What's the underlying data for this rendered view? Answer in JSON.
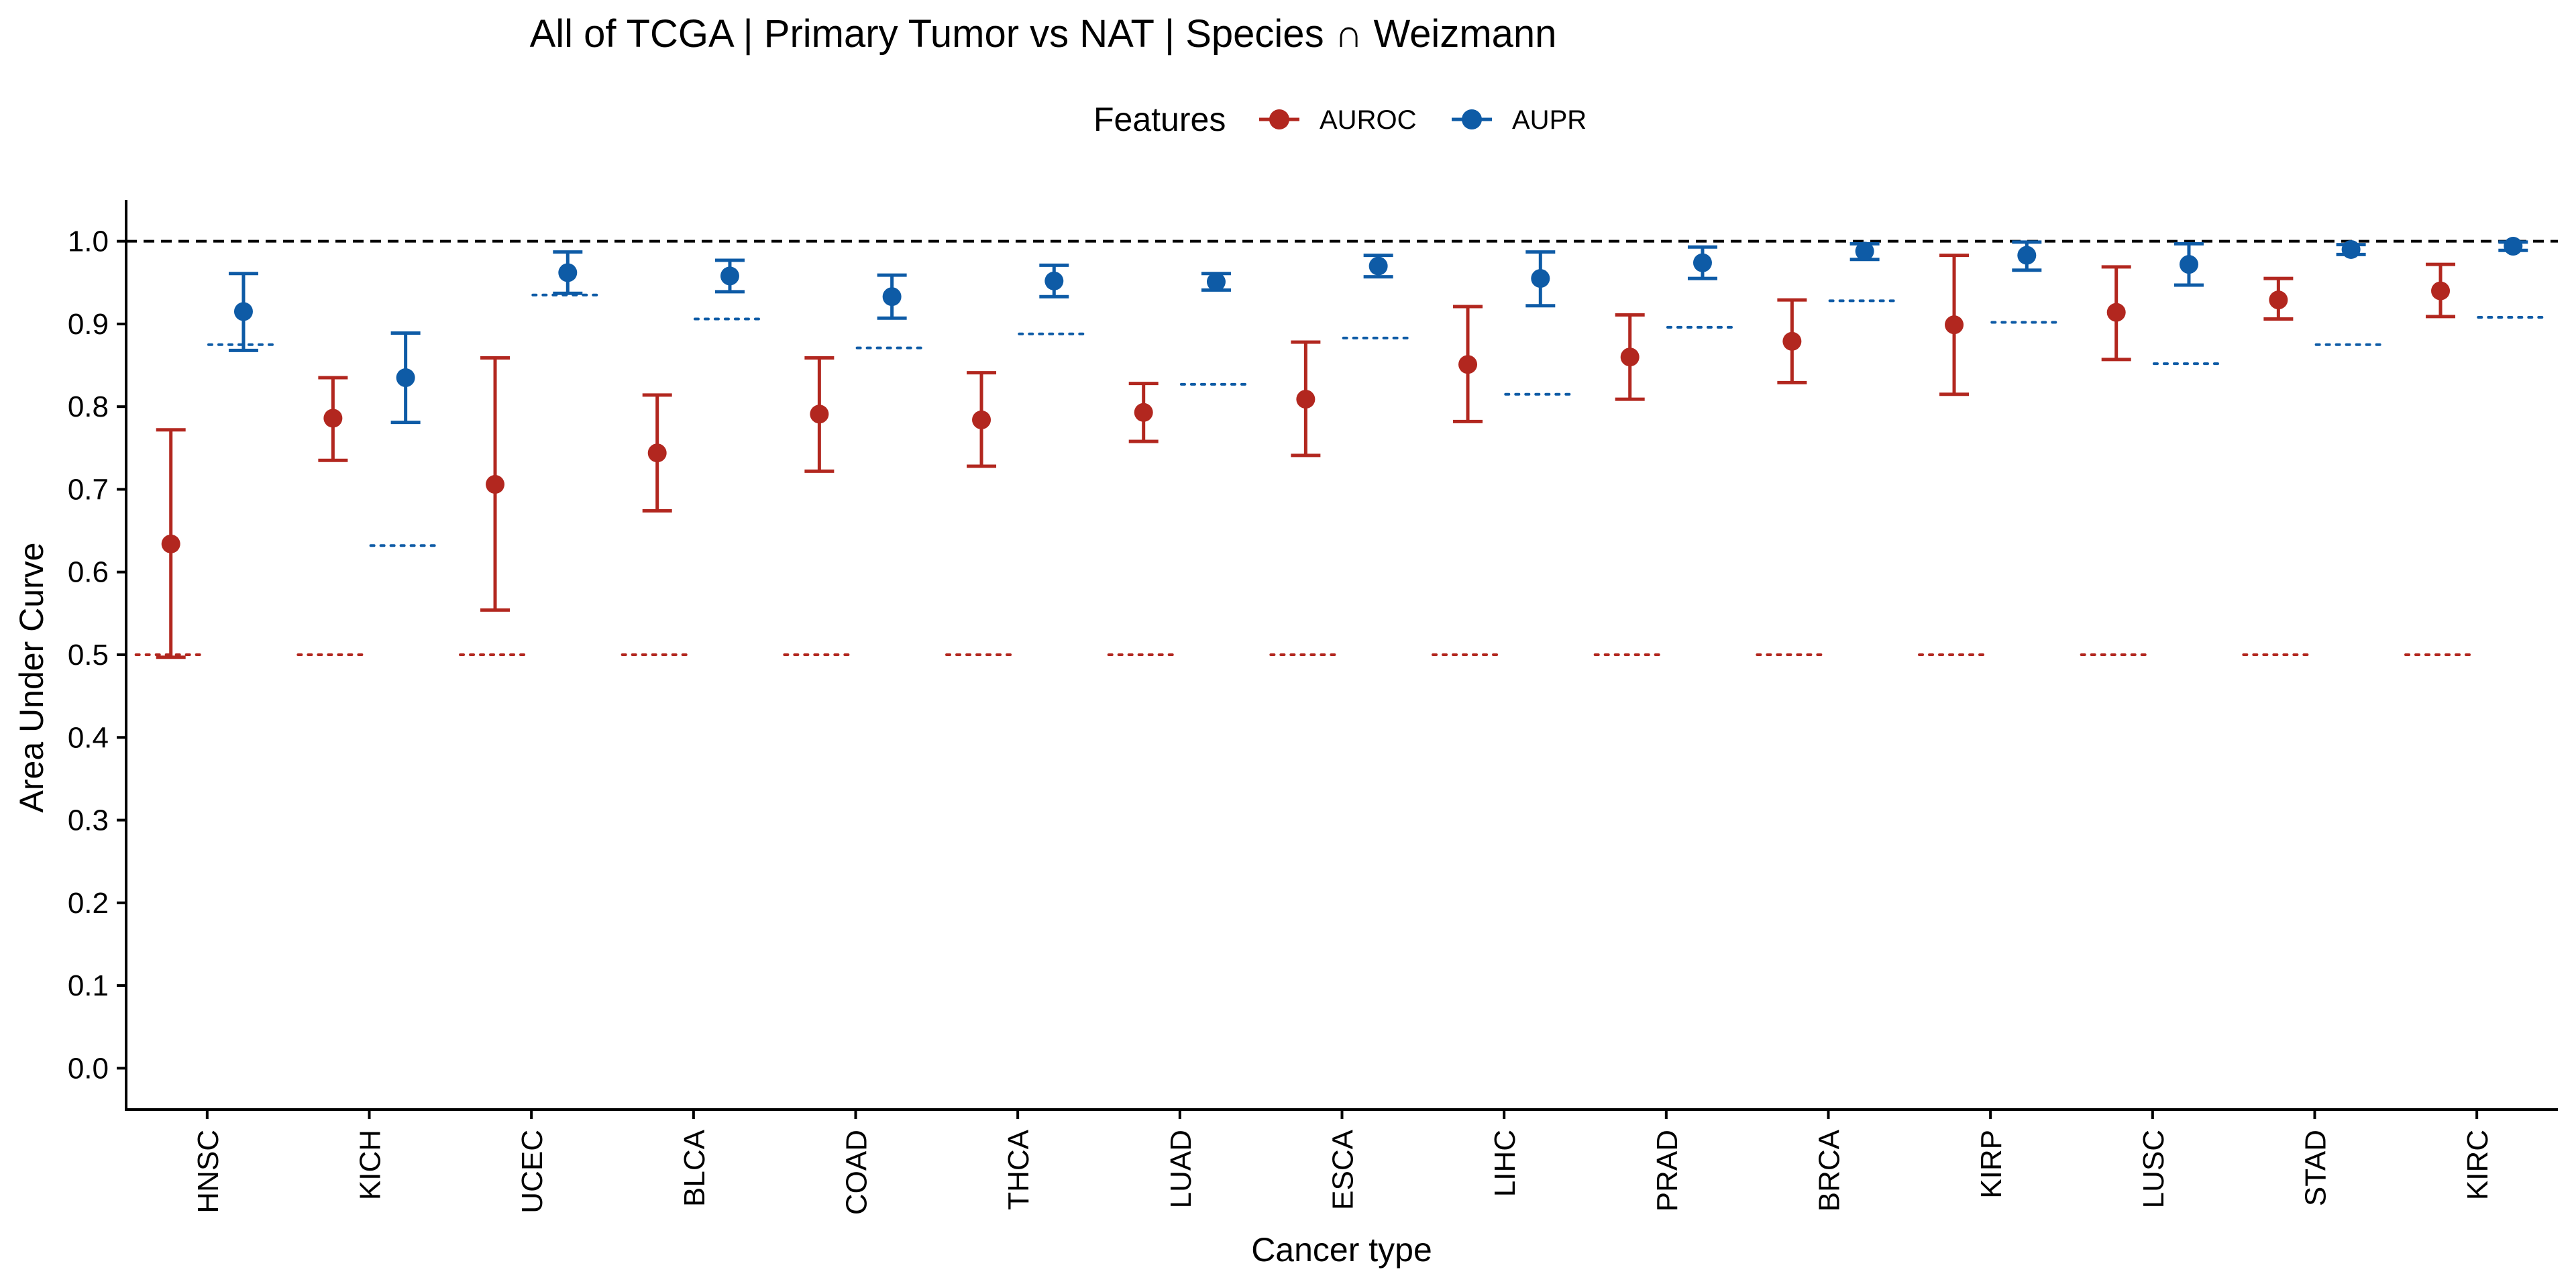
{
  "chart_data": {
    "type": "scatter",
    "title": "All of TCGA | Primary Tumor vs NAT | Species ∩ Weizmann",
    "xlabel": "Cancer type",
    "ylabel": "Area Under Curve",
    "ylim": [
      -0.05,
      1.05
    ],
    "yticks": [
      "0.0",
      "0.1",
      "0.2",
      "0.3",
      "0.4",
      "0.5",
      "0.6",
      "0.7",
      "0.8",
      "0.9",
      "1.0"
    ],
    "reference_line": 1.0,
    "legend": {
      "title": "Features",
      "position": "top"
    },
    "categories": [
      "HNSC",
      "KICH",
      "UCEC",
      "BLCA",
      "COAD",
      "THCA",
      "LUAD",
      "ESCA",
      "LIHC",
      "PRAD",
      "BRCA",
      "KIRP",
      "LUSC",
      "STAD",
      "KIRC"
    ],
    "series": [
      {
        "name": "AUROC",
        "color": "#B2271F",
        "values": [
          0.634,
          0.786,
          0.706,
          0.744,
          0.791,
          0.784,
          0.793,
          0.809,
          0.851,
          0.86,
          0.879,
          0.899,
          0.914,
          0.929,
          0.94
        ],
        "lower": [
          0.497,
          0.735,
          0.554,
          0.674,
          0.722,
          0.728,
          0.758,
          0.741,
          0.782,
          0.809,
          0.829,
          0.815,
          0.857,
          0.906,
          0.909
        ],
        "upper": [
          0.772,
          0.835,
          0.859,
          0.814,
          0.859,
          0.841,
          0.828,
          0.878,
          0.921,
          0.911,
          0.929,
          0.983,
          0.969,
          0.955,
          0.972
        ],
        "baseline": [
          0.5,
          0.5,
          0.5,
          0.5,
          0.5,
          0.5,
          0.5,
          0.5,
          0.5,
          0.5,
          0.5,
          0.5,
          0.5,
          0.5,
          0.5
        ]
      },
      {
        "name": "AUPR",
        "color": "#0E5BA6",
        "values": [
          0.915,
          0.835,
          0.962,
          0.958,
          0.933,
          0.952,
          0.951,
          0.97,
          0.955,
          0.974,
          0.988,
          0.983,
          0.972,
          0.99,
          0.994
        ],
        "lower": [
          0.868,
          0.781,
          0.937,
          0.939,
          0.907,
          0.933,
          0.941,
          0.957,
          0.922,
          0.955,
          0.978,
          0.965,
          0.947,
          0.984,
          0.989
        ],
        "upper": [
          0.961,
          0.889,
          0.987,
          0.977,
          0.959,
          0.971,
          0.961,
          0.983,
          0.987,
          0.993,
          0.997,
          0.999,
          0.997,
          0.996,
          0.999
        ],
        "baseline": [
          0.875,
          0.632,
          0.935,
          0.906,
          0.871,
          0.888,
          0.827,
          0.883,
          0.815,
          0.896,
          0.928,
          0.902,
          0.852,
          0.875,
          0.908
        ]
      }
    ]
  }
}
